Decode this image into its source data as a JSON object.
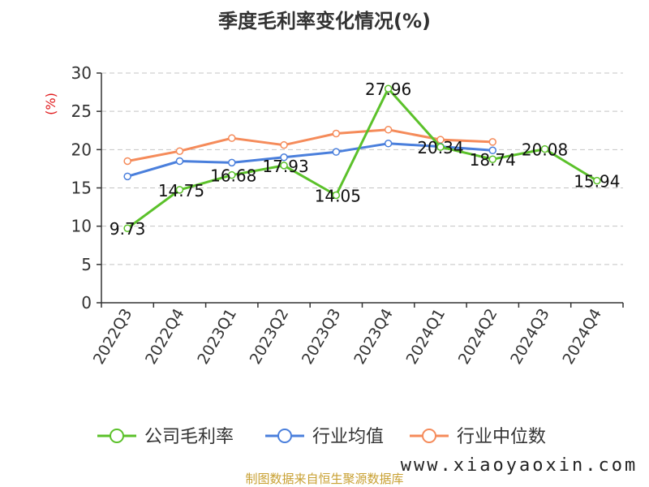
{
  "chart_data": {
    "type": "line",
    "title": "季度毛利率变化情况(%)",
    "ylabel": "(%)",
    "xlabel": "",
    "ylim": [
      0,
      30
    ],
    "yticks": [
      0,
      5,
      10,
      15,
      20,
      25,
      30
    ],
    "grid": true,
    "legend_position": "bottom",
    "categories": [
      "2022Q3",
      "2022Q4",
      "2023Q1",
      "2023Q2",
      "2023Q3",
      "2023Q4",
      "2024Q1",
      "2024Q2",
      "2024Q3",
      "2024Q4"
    ],
    "series": [
      {
        "name": "公司毛利率",
        "color": "#5bc12a",
        "values": [
          9.73,
          14.75,
          16.68,
          17.93,
          14.05,
          27.96,
          20.34,
          18.74,
          20.08,
          15.94
        ],
        "labels": [
          "9.73",
          "14.75",
          "16.68",
          "17.93",
          "14.05",
          "27.96",
          "20.34",
          "18.74",
          "20.08",
          "15.94"
        ]
      },
      {
        "name": "行业均值",
        "color": "#4a7fdc",
        "values": [
          16.5,
          18.5,
          18.3,
          19.0,
          19.7,
          20.8,
          20.4,
          19.9,
          null,
          null
        ]
      },
      {
        "name": "行业中位数",
        "color": "#f58b5a",
        "values": [
          18.5,
          19.8,
          21.5,
          20.6,
          22.1,
          22.6,
          21.3,
          21.0,
          null,
          null
        ]
      }
    ]
  },
  "footer": {
    "source": "制图数据来自恒生聚源数据库",
    "watermark": "www.xiaoyaoxin.com"
  }
}
